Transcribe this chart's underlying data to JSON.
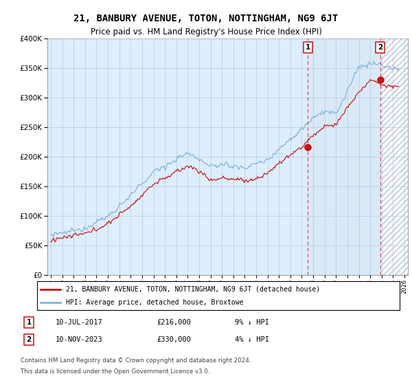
{
  "title": "21, BANBURY AVENUE, TOTON, NOTTINGHAM, NG9 6JT",
  "subtitle": "Price paid vs. HM Land Registry's House Price Index (HPI)",
  "legend_line1": "21, BANBURY AVENUE, TOTON, NOTTINGHAM, NG9 6JT (detached house)",
  "legend_line2": "HPI: Average price, detached house, Broxtowe",
  "table_row1": [
    "1",
    "10-JUL-2017",
    "£216,000",
    "9% ↓ HPI"
  ],
  "table_row2": [
    "2",
    "10-NOV-2023",
    "£330,000",
    "4% ↓ HPI"
  ],
  "footnote1": "Contains HM Land Registry data © Crown copyright and database right 2024.",
  "footnote2": "This data is licensed under the Open Government Licence v3.0.",
  "hpi_color": "#7fb3d9",
  "price_color": "#cc1111",
  "marker1_year": 2017.53,
  "marker1_price": 216000,
  "marker2_year": 2023.87,
  "marker2_price": 330000,
  "ylim": [
    0,
    400000
  ],
  "yticks": [
    0,
    50000,
    100000,
    150000,
    200000,
    250000,
    300000,
    350000,
    400000
  ],
  "xlim_start": 1994.7,
  "xlim_end": 2026.3,
  "plot_bg_color": "#ddeeff",
  "shade_between_color": "#ccddf5",
  "grid_color": "#b8c8de",
  "hatch_color": "#bbccdd"
}
